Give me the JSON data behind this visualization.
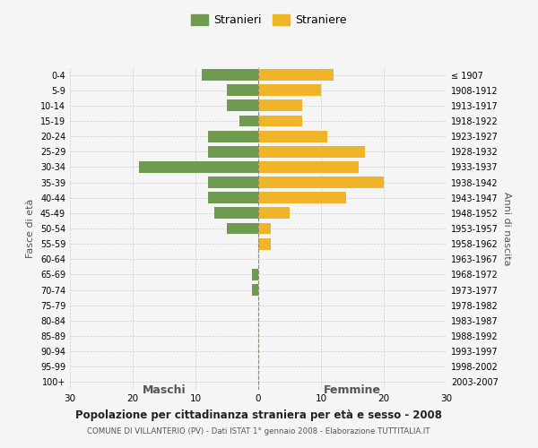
{
  "age_groups": [
    "100+",
    "95-99",
    "90-94",
    "85-89",
    "80-84",
    "75-79",
    "70-74",
    "65-69",
    "60-64",
    "55-59",
    "50-54",
    "45-49",
    "40-44",
    "35-39",
    "30-34",
    "25-29",
    "20-24",
    "15-19",
    "10-14",
    "5-9",
    "0-4"
  ],
  "birth_years": [
    "≤ 1907",
    "1908-1912",
    "1913-1917",
    "1918-1922",
    "1923-1927",
    "1928-1932",
    "1933-1937",
    "1938-1942",
    "1943-1947",
    "1948-1952",
    "1953-1957",
    "1958-1962",
    "1963-1967",
    "1968-1972",
    "1973-1977",
    "1978-1982",
    "1983-1987",
    "1988-1992",
    "1993-1997",
    "1998-2002",
    "2003-2007"
  ],
  "males": [
    0,
    0,
    0,
    0,
    0,
    0,
    1,
    1,
    0,
    0,
    5,
    7,
    8,
    8,
    19,
    8,
    8,
    3,
    5,
    5,
    9
  ],
  "females": [
    0,
    0,
    0,
    0,
    0,
    0,
    0,
    0,
    0,
    2,
    2,
    5,
    14,
    20,
    16,
    17,
    11,
    7,
    7,
    10,
    12
  ],
  "male_color": "#6e9b50",
  "female_color": "#f0b429",
  "background_color": "#f5f5f5",
  "grid_color": "#cccccc",
  "title": "Popolazione per cittadinanza straniera per età e sesso - 2008",
  "subtitle": "COMUNE DI VILLANTERIO (PV) - Dati ISTAT 1° gennaio 2008 - Elaborazione TUTTITALIA.IT",
  "xlabel_left": "Maschi",
  "xlabel_right": "Femmine",
  "ylabel_left": "Fasce di età",
  "ylabel_right": "Anni di nascita",
  "legend_males": "Stranieri",
  "legend_females": "Straniere",
  "xlim": 30
}
